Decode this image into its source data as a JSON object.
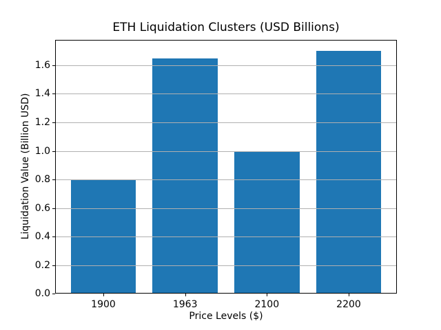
{
  "chart_data": {
    "type": "bar",
    "title": "ETH Liquidation Clusters (USD Billions)",
    "xlabel": "Price Levels ($)",
    "ylabel": "Liquidation Value (Billion USD)",
    "categories": [
      "1900",
      "1963",
      "2100",
      "2200"
    ],
    "values": [
      0.8,
      1.65,
      1.0,
      1.7
    ],
    "yticks": [
      0.0,
      0.2,
      0.4,
      0.6,
      0.8,
      1.0,
      1.2,
      1.4,
      1.6
    ],
    "ytick_labels": [
      "0.0",
      "0.2",
      "0.4",
      "0.6",
      "0.8",
      "1.0",
      "1.2",
      "1.4",
      "1.6"
    ],
    "ylim": [
      0,
      1.778
    ],
    "xlim": [
      -0.59,
      3.59
    ],
    "bar_width_units": 0.8,
    "grid": "horizontal-only",
    "grid_over_bars": true,
    "legend": "none",
    "colors": {
      "bar": "#1f77b4",
      "grid": "#b0b0b0",
      "axis": "#000000",
      "text": "#000000",
      "background": "#ffffff"
    }
  }
}
